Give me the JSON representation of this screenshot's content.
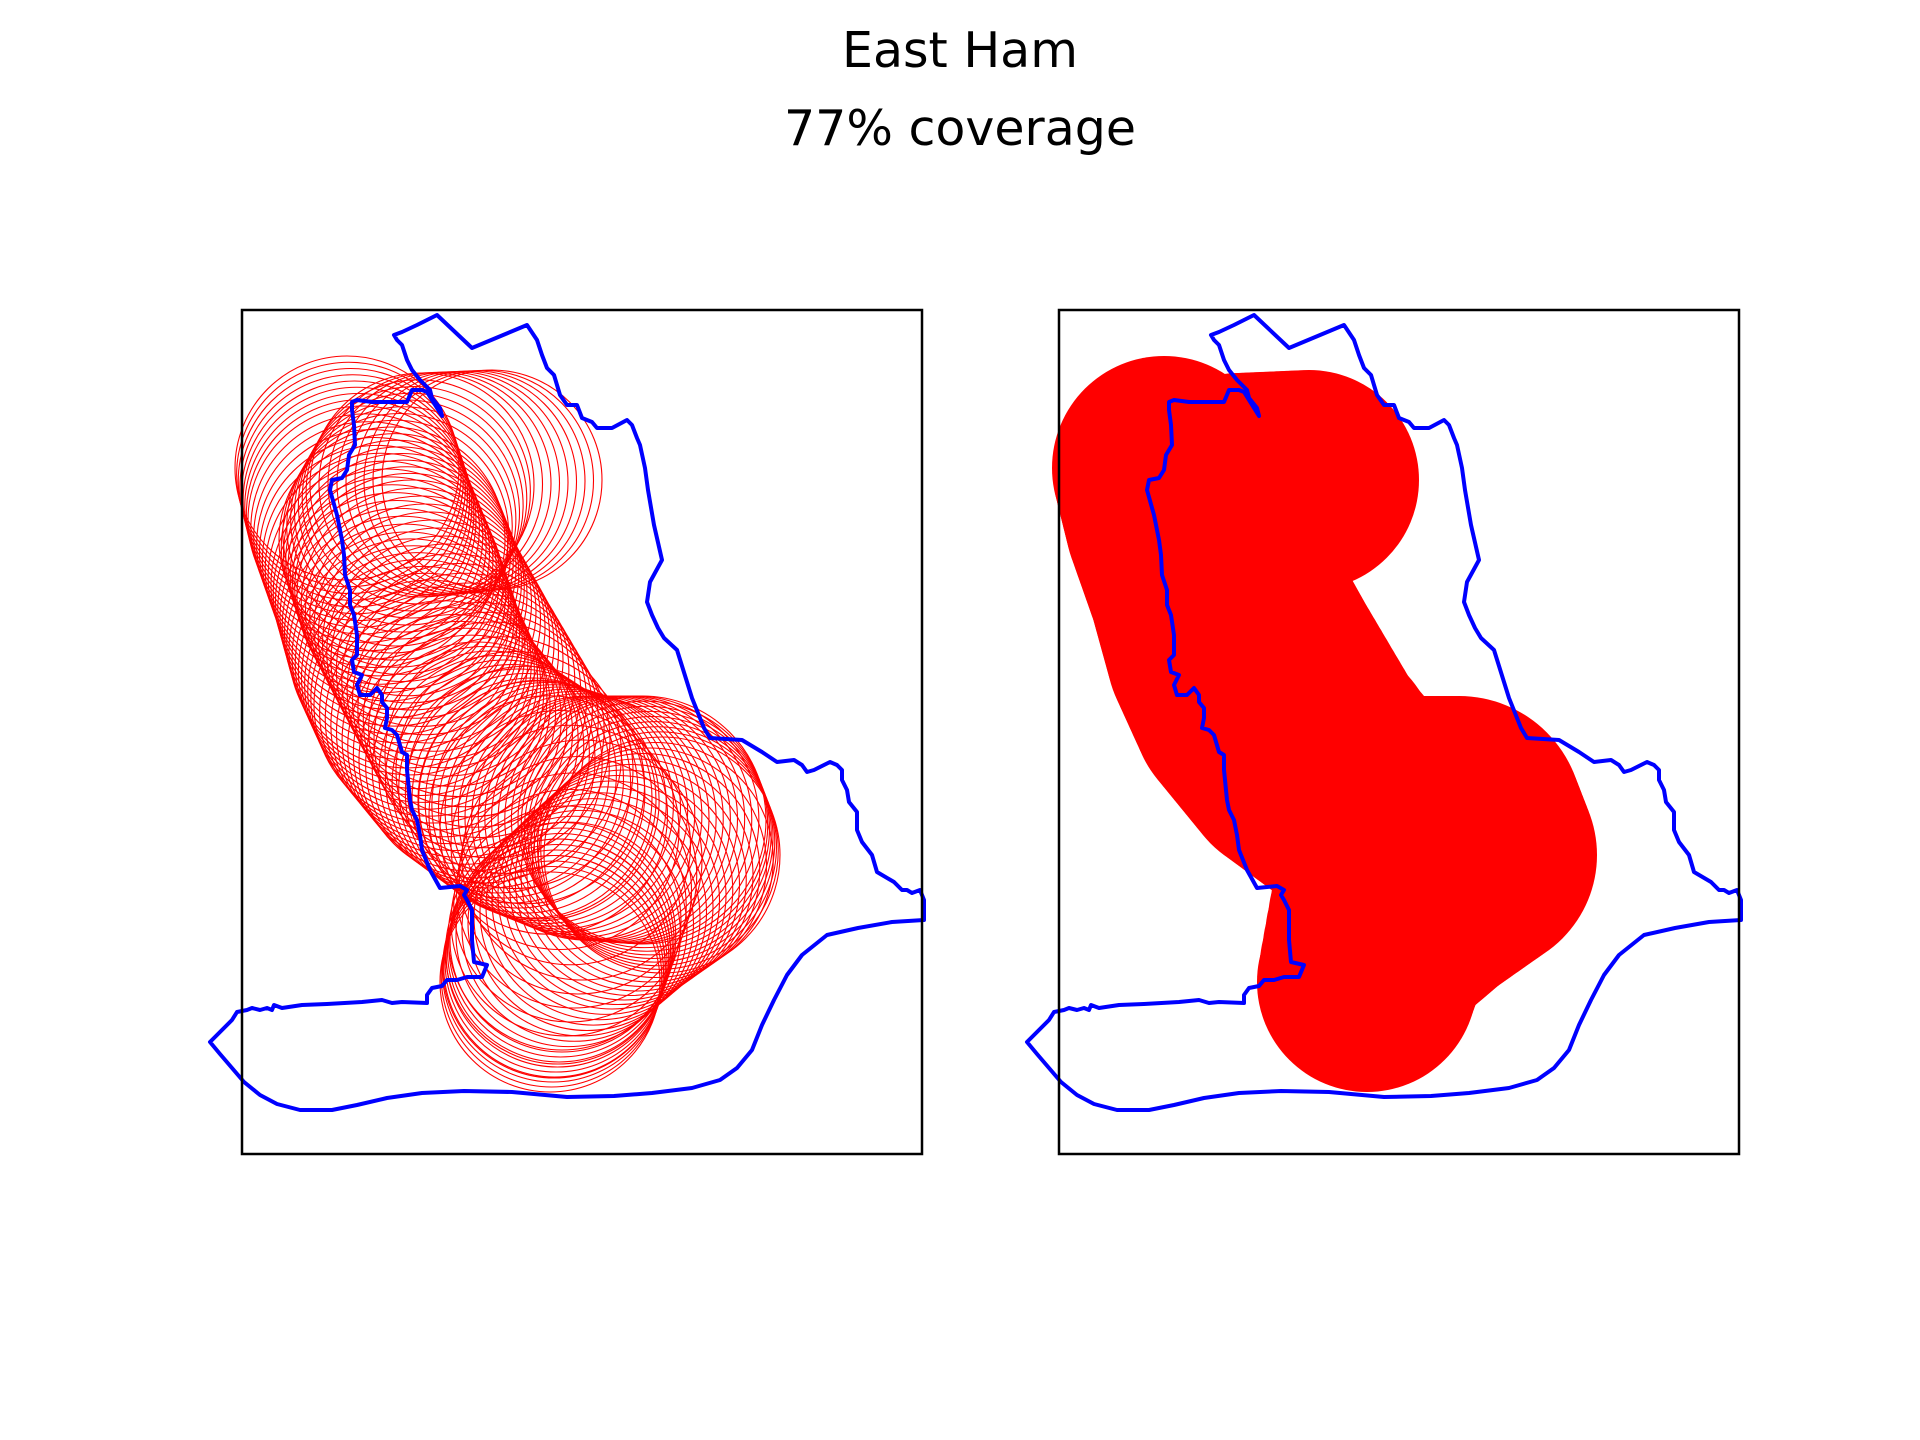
{
  "figure": {
    "title": "East Ham",
    "subtitle": "77% coverage"
  },
  "colors": {
    "boundary": "#0000ff",
    "coverage": "#ff0000",
    "frame": "#000000",
    "background": "#ffffff"
  },
  "panels": [
    {
      "style": "outline-circles"
    },
    {
      "style": "filled-union"
    }
  ]
}
